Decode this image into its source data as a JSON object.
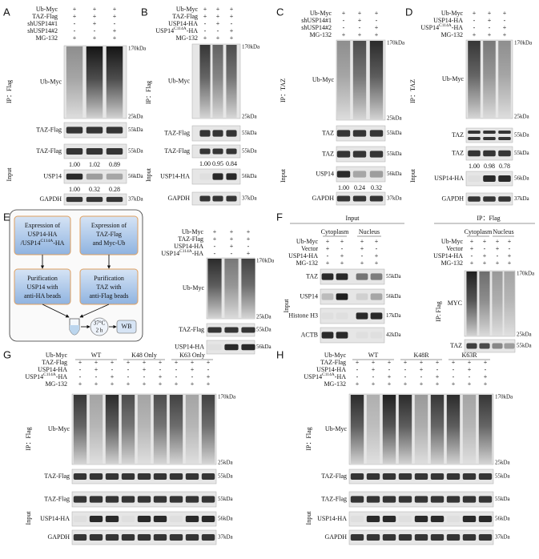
{
  "panels": [
    {
      "label": "A",
      "conditions": [
        {
          "name": [
            "Ub-Myc"
          ],
          "signs": [
            "+",
            "+",
            "+"
          ]
        },
        {
          "name": [
            "TAZ-Flag"
          ],
          "signs": [
            "+",
            "+",
            "+"
          ]
        },
        {
          "name": [
            "shUSP14#1"
          ],
          "signs": [
            "-",
            "+",
            "-"
          ]
        },
        {
          "name": [
            "shUSP14#2"
          ],
          "signs": [
            "-",
            "-",
            "+"
          ]
        },
        {
          "name": [
            "MG-132"
          ],
          "signs": [
            "+",
            "+",
            "+"
          ]
        }
      ],
      "ip": {
        "label": "IP：Flag",
        "blots": [
          {
            "name": "Ub-Myc",
            "markers": [
              "170kDa",
              "25kDa"
            ]
          },
          {
            "name": "TAZ-Flag",
            "markers": [
              "55kDa"
            ]
          }
        ]
      },
      "input": {
        "label": "Input",
        "blots": [
          {
            "name": "TAZ-Flag",
            "markers": [
              "55kDa"
            ],
            "quant": [
              "1.00",
              "1.02",
              "0.89"
            ]
          },
          {
            "name": "USP14",
            "markers": [
              "56kDa"
            ],
            "quant": [
              "1.00",
              "0.32",
              "0.28"
            ]
          },
          {
            "name": "GAPDH",
            "markers": [
              "37kDa"
            ]
          }
        ]
      }
    },
    {
      "label": "B",
      "conditions": [
        {
          "name": [
            "Ub-Myc"
          ],
          "signs": [
            "+",
            "+",
            "+"
          ]
        },
        {
          "name": [
            "TAZ-Flag"
          ],
          "signs": [
            "+",
            "+",
            "+"
          ]
        },
        {
          "name": [
            "USP14-HA"
          ],
          "signs": [
            "-",
            "+",
            "-"
          ]
        },
        {
          "name": [
            "USP14",
            "C114A",
            "-HA"
          ],
          "signs": [
            "-",
            "-",
            "+"
          ]
        },
        {
          "name": [
            "MG-132"
          ],
          "signs": [
            "+",
            "+",
            "+"
          ]
        }
      ],
      "ip": {
        "label": "IP：Flag",
        "blots": [
          {
            "name": "Ub-Myc",
            "markers": [
              "170kDa",
              "25kDa"
            ]
          },
          {
            "name": "TAZ-Flag",
            "markers": [
              "55kDa"
            ]
          }
        ]
      },
      "input": {
        "label": "Input",
        "blots": [
          {
            "name": "TAZ-Flag",
            "markers": [
              "55kDa"
            ],
            "quant": [
              "1.00",
              "0.95",
              "0.84"
            ]
          },
          {
            "name": "USP14-HA",
            "markers": [
              "56kDa"
            ]
          },
          {
            "name": "GAPDH",
            "markers": [
              "37kDa"
            ]
          }
        ]
      }
    },
    {
      "label": "C",
      "conditions": [
        {
          "name": [
            "Ub-Myc"
          ],
          "signs": [
            "+",
            "+",
            "+"
          ]
        },
        {
          "name": [
            "shUSP14#1"
          ],
          "signs": [
            "-",
            "+",
            "-"
          ]
        },
        {
          "name": [
            "shUSP14#2"
          ],
          "signs": [
            "-",
            "-",
            "+"
          ]
        },
        {
          "name": [
            "MG-132"
          ],
          "signs": [
            "+",
            "+",
            "+"
          ]
        }
      ],
      "ip": {
        "label": "IP：TAZ",
        "blots": [
          {
            "name": "Ub-Myc",
            "markers": [
              "170kDa",
              "25kDa"
            ]
          },
          {
            "name": "TAZ",
            "markers": [
              "55kDa"
            ]
          }
        ]
      },
      "input": {
        "label": "Input",
        "blots": [
          {
            "name": "TAZ",
            "markers": [
              "55kDa"
            ]
          },
          {
            "name": "USP14",
            "markers": [
              "56kDa"
            ],
            "quant": [
              "1.00",
              "0.24",
              "0.32"
            ]
          },
          {
            "name": "GAPDH",
            "markers": [
              "37kDa"
            ]
          }
        ]
      }
    },
    {
      "label": "D",
      "conditions": [
        {
          "name": [
            "Ub-Myc"
          ],
          "signs": [
            "+",
            "+",
            "+"
          ]
        },
        {
          "name": [
            "USP14-HA"
          ],
          "signs": [
            "-",
            "+",
            "-"
          ]
        },
        {
          "name": [
            "USP14",
            "C114A",
            "-HA"
          ],
          "signs": [
            "-",
            "-",
            "+"
          ]
        },
        {
          "name": [
            "MG-132"
          ],
          "signs": [
            "+",
            "+",
            "+"
          ]
        }
      ],
      "ip": {
        "label": "IP：TAZ",
        "blots": [
          {
            "name": "Ub-Myc",
            "markers": [
              "170kDa",
              "25kDa"
            ]
          },
          {
            "name": "TAZ",
            "markers": [
              "55kDa"
            ]
          }
        ]
      },
      "input": {
        "label": "Input",
        "blots": [
          {
            "name": "TAZ",
            "markers": [
              "55kDa"
            ],
            "quant": [
              "1.00",
              "0.98",
              "0.78"
            ]
          },
          {
            "name": "USP14-HA",
            "markers": [
              "56kDa"
            ]
          },
          {
            "name": "GAPDH",
            "markers": [
              "37kDa"
            ]
          }
        ]
      }
    },
    {
      "label": "E",
      "conditions": [
        {
          "name": [
            "Ub-Myc"
          ],
          "signs": [
            "+",
            "+",
            "+"
          ]
        },
        {
          "name": [
            "TAZ-Flag"
          ],
          "signs": [
            "+",
            "+",
            "+"
          ]
        },
        {
          "name": [
            "USP14-HA"
          ],
          "signs": [
            "-",
            "+",
            "-"
          ]
        },
        {
          "name": [
            "USP14",
            "C114A",
            "-HA"
          ],
          "signs": [
            "-",
            "-",
            "+"
          ]
        }
      ],
      "blots": [
        {
          "name": "Ub-Myc",
          "markers": [
            "170kDa",
            "25kDa"
          ]
        },
        {
          "name": "TAZ-Flag",
          "markers": [
            "55kDa"
          ]
        },
        {
          "name": "USP14-HA",
          "markers": [
            "56kDa"
          ]
        }
      ]
    },
    {
      "label": "F",
      "header": "Input",
      "groups": [
        "Cytoplasm",
        "Nucleus"
      ],
      "conditions": [
        {
          "name": [
            "Ub-Myc"
          ],
          "signs": [
            "+",
            "+",
            "+",
            "+"
          ]
        },
        {
          "name": [
            "Vector"
          ],
          "signs": [
            "+",
            "-",
            "+",
            "-"
          ]
        },
        {
          "name": [
            "USP14-HA"
          ],
          "signs": [
            "-",
            "+",
            "-",
            "+"
          ]
        },
        {
          "name": [
            "MG-132"
          ],
          "signs": [
            "+",
            "+",
            "+",
            "+"
          ]
        }
      ],
      "input": {
        "label": "Input",
        "blots": [
          {
            "name": "TAZ",
            "markers": [
              "55kDa"
            ]
          },
          {
            "name": "USP14",
            "markers": [
              "56kDa"
            ]
          },
          {
            "name": "Histone H3",
            "markers": [
              "17kDa"
            ]
          },
          {
            "name": "ACTB",
            "markers": [
              "42kDa"
            ]
          }
        ]
      }
    },
    {
      "header": "IP：Flag",
      "groups": [
        "Cytoplasm",
        "Nucleus"
      ],
      "conditions": [
        {
          "name": [
            "Ub-Myc"
          ],
          "signs": [
            "+",
            "+",
            "+",
            "+"
          ]
        },
        {
          "name": [
            "Vector"
          ],
          "signs": [
            "+",
            "-",
            "+",
            "-"
          ]
        },
        {
          "name": [
            "USP14-HA"
          ],
          "signs": [
            "-",
            "+",
            "-",
            "+"
          ]
        },
        {
          "name": [
            "MG-132"
          ],
          "signs": [
            "+",
            "+",
            "+",
            "+"
          ]
        }
      ],
      "ip": {
        "label": "IP: Flag",
        "blots": [
          {
            "name": "MYC",
            "markers": [
              "170kDa",
              "25kDa"
            ]
          },
          {
            "name": "TAZ",
            "markers": [
              "55kDa"
            ]
          }
        ]
      }
    },
    {
      "label": "G",
      "groups": [
        "WT",
        "K48 Only",
        "K63 Only"
      ],
      "conditions": [
        {
          "name": [
            "Ub-Myc"
          ],
          "signs": []
        },
        {
          "name": [
            "TAZ-Flag"
          ],
          "signs": [
            "+",
            "+",
            "+",
            "+",
            "+",
            "+",
            "+",
            "+",
            "+"
          ]
        },
        {
          "name": [
            "USP14-HA"
          ],
          "signs": [
            "-",
            "+",
            "-",
            "-",
            "+",
            "-",
            "-",
            "+",
            "-"
          ]
        },
        {
          "name": [
            "USP14",
            "C114A",
            "-HA"
          ],
          "signs": [
            "-",
            "-",
            "+",
            "-",
            "-",
            "+",
            "-",
            "-",
            "+"
          ]
        },
        {
          "name": [
            "MG-132"
          ],
          "signs": [
            "+",
            "+",
            "+",
            "+",
            "+",
            "+",
            "+",
            "+",
            "+"
          ]
        }
      ],
      "ip": {
        "label": "IP：Flag",
        "blots": [
          {
            "name": "Ub-Myc",
            "markers": [
              "170kDa",
              "25kDa"
            ]
          },
          {
            "name": "TAZ-Flag",
            "markers": [
              "55kDa"
            ]
          }
        ]
      },
      "input": {
        "label": "Input",
        "blots": [
          {
            "name": "TAZ-Flag",
            "markers": [
              "55kDa"
            ]
          },
          {
            "name": "USP14-HA",
            "markers": [
              "56kDa"
            ]
          },
          {
            "name": "GAPDH",
            "markers": [
              "37kDa"
            ]
          }
        ]
      }
    },
    {
      "label": "H",
      "groups": [
        "WT",
        "K48R",
        "K63R"
      ],
      "conditions": [
        {
          "name": [
            "Ub-Myc"
          ],
          "signs": []
        },
        {
          "name": [
            "TAZ-Flag"
          ],
          "signs": [
            "+",
            "+",
            "+",
            "+",
            "+",
            "+",
            "+",
            "+",
            "+"
          ]
        },
        {
          "name": [
            "USP14-HA"
          ],
          "signs": [
            "-",
            "+",
            "-",
            "-",
            "+",
            "-",
            "-",
            "+",
            "-"
          ]
        },
        {
          "name": [
            "USP14",
            "C114A",
            "-HA"
          ],
          "signs": [
            "-",
            "-",
            "+",
            "-",
            "-",
            "+",
            "-",
            "-",
            "+"
          ]
        },
        {
          "name": [
            "MG-132"
          ],
          "signs": [
            "+",
            "+",
            "+",
            "+",
            "+",
            "+",
            "+",
            "+",
            "+"
          ]
        }
      ],
      "ip": {
        "label": "IP：Flag",
        "blots": [
          {
            "name": "Ub-Myc",
            "markers": [
              "170kDa",
              "25kDa"
            ]
          },
          {
            "name": "TAZ-Flag",
            "markers": [
              "55kDa"
            ]
          }
        ]
      },
      "input": {
        "label": "Input",
        "blots": [
          {
            "name": "TAZ-Flag",
            "markers": [
              "55kDa"
            ]
          },
          {
            "name": "USP14-HA",
            "markers": [
              "56kDa"
            ]
          },
          {
            "name": "GAPDH",
            "markers": [
              "37kDa"
            ]
          }
        ]
      }
    }
  ],
  "diagram": {
    "steps": [
      [
        [
          "Expression of"
        ],
        [
          "USP14-HA"
        ],
        [
          "/USP14",
          "C114A",
          "-HA"
        ]
      ],
      [
        [
          "Expression of"
        ],
        [
          "TAZ-Flag"
        ],
        [
          "and Myc-Ub"
        ]
      ],
      [
        [
          "Purification"
        ],
        [
          "USP14 with"
        ],
        [
          "anti-HA beads"
        ]
      ],
      [
        [
          "Purification"
        ],
        [
          "TAZ with"
        ],
        [
          "anti-Flag beads"
        ]
      ]
    ],
    "incubation": [
      "37°C",
      "2 h"
    ],
    "readout": "WB"
  }
}
